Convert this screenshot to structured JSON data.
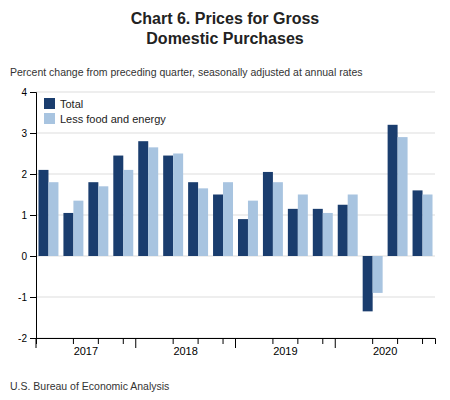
{
  "chart_data": {
    "type": "bar",
    "title": [
      "Chart 6. Prices for Gross",
      "Domestic Purchases"
    ],
    "subtitle": "Percent change from preceding quarter, seasonally adjusted at annual rates",
    "annotations": [
      "U.S. Bureau of Economic Analysis"
    ],
    "categories": [
      "2017",
      null,
      null,
      null,
      "2018",
      null,
      null,
      null,
      "2019",
      null,
      null,
      null,
      "2020",
      null,
      null,
      null
    ],
    "series": [
      {
        "name": "Total",
        "color": "#1a3d6e",
        "values": [
          2.1,
          1.05,
          1.8,
          2.45,
          2.8,
          2.45,
          1.8,
          1.5,
          0.9,
          2.05,
          1.15,
          1.15,
          1.25,
          -1.35,
          3.2,
          1.6
        ]
      },
      {
        "name": "Less food and energy",
        "color": "#a8c4e0",
        "values": [
          1.8,
          1.35,
          1.7,
          2.1,
          2.65,
          2.5,
          1.65,
          1.8,
          1.35,
          1.8,
          1.5,
          1.05,
          1.5,
          -0.9,
          2.9,
          1.5
        ]
      }
    ],
    "ylim": [
      -2,
      4
    ],
    "yticks": [
      -2,
      -1,
      0,
      1,
      2,
      3,
      4
    ],
    "grid": true,
    "legend": "upper left"
  }
}
